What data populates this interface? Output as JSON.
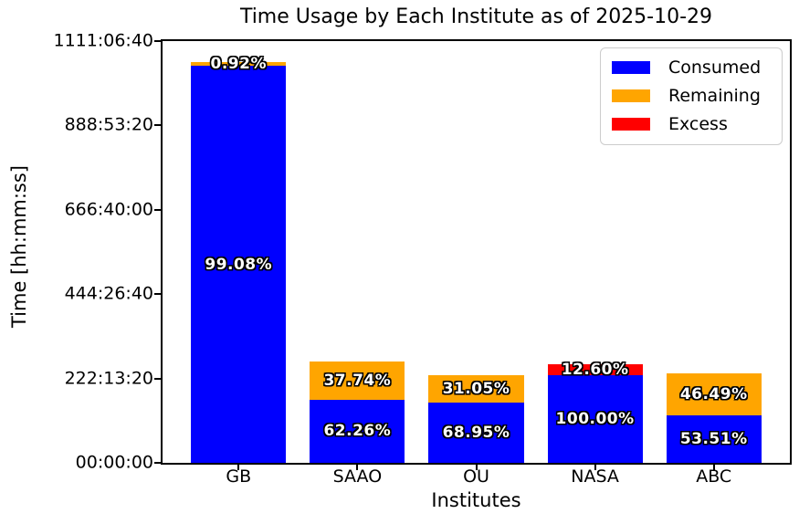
{
  "chart_data": {
    "type": "bar",
    "stacked": true,
    "title": "Time Usage by Each Institute as of 2025-10-29",
    "xlabel": "Institutes",
    "ylabel": "Time [hh:mm:ss]",
    "categories": [
      "GB",
      "SAAO",
      "OU",
      "NASA",
      "ABC"
    ],
    "ylim_seconds": [
      0,
      4000000
    ],
    "ytick_labels": [
      "00:00:00",
      "222:13:20",
      "444:26:40",
      "666:40:00",
      "888:53:20",
      "1111:06:40"
    ],
    "grid": false,
    "legend_position": "upper right",
    "series": [
      {
        "name": "Consumed",
        "color": "#0000ff",
        "values_seconds": [
          3766000,
          600000,
          571400,
          828600,
          452800
        ],
        "percent_labels": [
          "99.08%",
          "62.26%",
          "68.95%",
          "100.00%",
          "53.51%"
        ]
      },
      {
        "name": "Remaining",
        "color": "#ffa500",
        "values_seconds": [
          35000,
          363700,
          257300,
          0,
          393400
        ],
        "percent_labels": [
          "0.92%",
          "37.74%",
          "31.05%",
          "",
          "46.49%"
        ]
      },
      {
        "name": "Excess",
        "color": "#ff0000",
        "values_seconds": [
          0,
          0,
          0,
          104400,
          0
        ],
        "percent_labels": [
          "",
          "",
          "",
          "12.60%",
          ""
        ]
      }
    ],
    "label_style": {
      "text_color": "#ffffff",
      "outline_color": "#000000"
    },
    "axis_color": "#000000",
    "legend_border_color": "#cccccc"
  }
}
